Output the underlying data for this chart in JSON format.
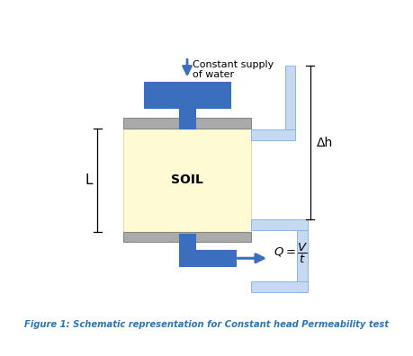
{
  "title": "Figure 1: Schematic representation for Constant head Permeability test",
  "title_color": "#2E75B6",
  "background_color": "#ffffff",
  "blue_dark": "#3B6FBE",
  "blue_light": "#C5D9F1",
  "blue_light_border": "#8EB4E3",
  "gray_cap": "#AAAAAA",
  "gray_cap_border": "#888888",
  "soil_fill": "#FEFAD4",
  "soil_border": "#D4CC88",
  "soil_label": "SOIL",
  "constant_supply_text1": "Constant supply",
  "constant_supply_text2": "of water",
  "delta_h_label": "Δh",
  "L_label": "L",
  "arrow_color": "#3B6FBE"
}
